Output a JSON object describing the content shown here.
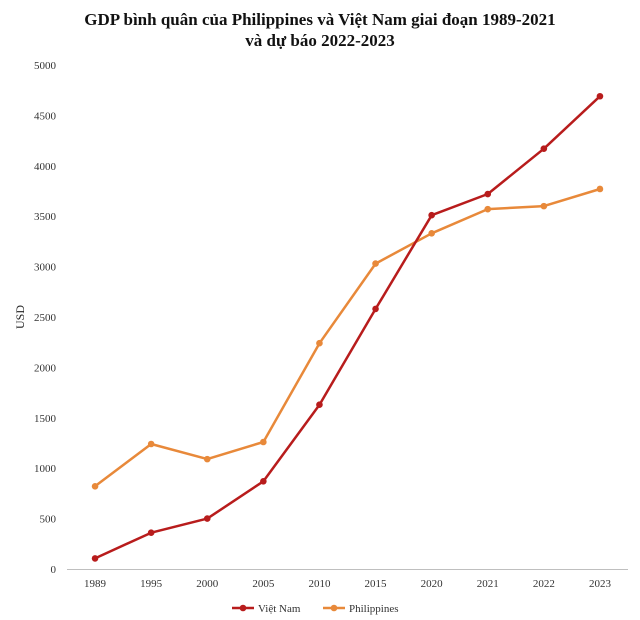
{
  "chart_data": {
    "type": "line",
    "title_line1": "GDP bình quân của Philippines và Việt Nam giai đoạn 1989-2021",
    "title_line2": "và dự báo 2022-2023",
    "ylabel": "USD",
    "xlabel": "",
    "categories": [
      "1989",
      "1995",
      "2000",
      "2005",
      "2010",
      "2015",
      "2020",
      "2021",
      "2022",
      "2023"
    ],
    "yticks": [
      0,
      500,
      1000,
      1500,
      2000,
      2500,
      3000,
      3500,
      4000,
      4500,
      5000
    ],
    "ylim": [
      0,
      5000
    ],
    "grid": false,
    "legend_position": "bottom",
    "series": [
      {
        "name": "Việt Nam",
        "color": "#b81c1c",
        "values": [
          105,
          360,
          500,
          870,
          1630,
          2580,
          3510,
          3720,
          4170,
          4690
        ]
      },
      {
        "name": "Philippines",
        "color": "#e8893a",
        "values": [
          820,
          1240,
          1090,
          1260,
          2240,
          3030,
          3330,
          3570,
          3600,
          3770
        ]
      }
    ]
  }
}
